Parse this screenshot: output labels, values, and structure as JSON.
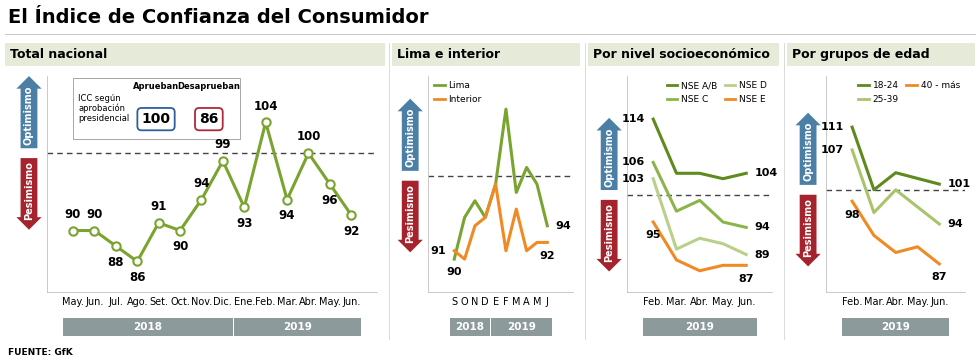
{
  "title": "El Índice de Confianza del Consumidor",
  "source": "FUENTE: GfK",
  "chart_data": [
    {
      "type": "line",
      "title": "Total nacional",
      "categories": [
        "May.",
        "Jun.",
        "Jul.",
        "Ago.",
        "Set.",
        "Oct.",
        "Nov.",
        "Dic.",
        "Ene.",
        "Feb.",
        "Mar.",
        "Abr.",
        "May.",
        "Jun."
      ],
      "values": [
        90,
        90,
        88,
        86,
        91,
        90,
        94,
        99,
        93,
        104,
        94,
        100,
        96,
        92
      ],
      "color": "#7aa330",
      "marker": "o",
      "data_labels": true,
      "ylim": [
        82,
        110
      ],
      "yticks": [],
      "tick_labels": "x",
      "threshold": 100,
      "threshold_labels": {
        "above": "Optimismo",
        "below": "Pesimismo"
      },
      "periods": [
        {
          "label": "2018",
          "count": 8
        },
        {
          "label": "2019",
          "count": 6
        }
      ],
      "inset": {
        "title": "ICC según aprobación presidencial",
        "items": [
          {
            "label": "Aprueban",
            "value": 100,
            "color": "#2f5f9e"
          },
          {
            "label": "Desaprueban",
            "value": 86,
            "color": "#b0283a"
          }
        ]
      }
    },
    {
      "type": "line",
      "title": "Lima e interior",
      "categories": [
        "S",
        "O",
        "N",
        "D",
        "E",
        "F",
        "M",
        "A",
        "M",
        "J"
      ],
      "series": [
        {
          "name": "Lima",
          "color": "#7aa330",
          "values": [
            90,
            95,
            97,
            95,
            99,
            108,
            98,
            101,
            99,
            94
          ],
          "value_labels": [
            "90",
            null,
            null,
            null,
            null,
            null,
            null,
            null,
            null,
            "94"
          ]
        },
        {
          "name": "Interior",
          "color": "#f08a24",
          "values": [
            91,
            90,
            94,
            95,
            99,
            91,
            96,
            91,
            92,
            92
          ],
          "value_labels": [
            "91",
            null,
            null,
            null,
            null,
            null,
            null,
            null,
            null,
            "92"
          ]
        }
      ],
      "legend": "upper left",
      "ylim": [
        86,
        112
      ],
      "yticks": [],
      "tick_labels": "x",
      "threshold": 100,
      "threshold_labels": {
        "above": "Optimismo",
        "below": "Pesimismo"
      },
      "periods": [
        {
          "label": "2018",
          "count": 4
        },
        {
          "label": "2019",
          "count": 6
        }
      ]
    },
    {
      "type": "line",
      "title": "Por nivel socioeconómico",
      "categories": [
        "Feb.",
        "Mar.",
        "Abr.",
        "May.",
        "Jun."
      ],
      "series": [
        {
          "name": "NSE A/B",
          "color": "#5e8a1e",
          "values": [
            114,
            104,
            104,
            103,
            104
          ],
          "value_labels": [
            "114",
            null,
            null,
            null,
            "104"
          ]
        },
        {
          "name": "NSE C",
          "color": "#8db44a",
          "values": [
            106,
            97,
            99,
            95,
            94
          ],
          "value_labels": [
            "106",
            null,
            null,
            null,
            "94"
          ]
        },
        {
          "name": "NSE D",
          "color": "#b9d08a",
          "values": [
            103,
            90,
            92,
            91,
            89
          ],
          "value_labels": [
            "103",
            null,
            null,
            null,
            "89"
          ]
        },
        {
          "name": "NSE E",
          "color": "#f08a24",
          "values": [
            95,
            88,
            86,
            87,
            87
          ],
          "value_labels": [
            "95",
            null,
            null,
            null,
            "87"
          ]
        }
      ],
      "legend": "upper right",
      "ylim": [
        82,
        122
      ],
      "yticks": [],
      "tick_labels": "x",
      "threshold": 100,
      "threshold_labels": {
        "above": "Optimismo",
        "below": "Pesimismo"
      },
      "periods": [
        {
          "label": "2019",
          "count": 5
        }
      ]
    },
    {
      "type": "line",
      "title": "Por grupos de edad",
      "categories": [
        "Feb.",
        "Mar.",
        "Abr.",
        "May.",
        "Jun."
      ],
      "series": [
        {
          "name": "18-24",
          "color": "#5e8a1e",
          "values": [
            111,
            100,
            103,
            102,
            101
          ],
          "value_labels": [
            "111",
            null,
            null,
            null,
            "101"
          ]
        },
        {
          "name": "25-39",
          "color": "#a9c46c",
          "values": [
            107,
            96,
            100,
            97,
            94
          ],
          "value_labels": [
            "107",
            null,
            null,
            null,
            "94"
          ]
        },
        {
          "name": "40 - más",
          "color": "#f08a24",
          "values": [
            98,
            92,
            89,
            90,
            87
          ],
          "value_labels": [
            "98",
            null,
            null,
            null,
            "87"
          ]
        }
      ],
      "legend": "upper right",
      "ylim": [
        82,
        120
      ],
      "yticks": [],
      "tick_labels": "x",
      "threshold": 100,
      "threshold_labels": {
        "above": "Optimismo",
        "below": "Pesimismo"
      },
      "periods": [
        {
          "label": "2019",
          "count": 5
        }
      ]
    }
  ]
}
